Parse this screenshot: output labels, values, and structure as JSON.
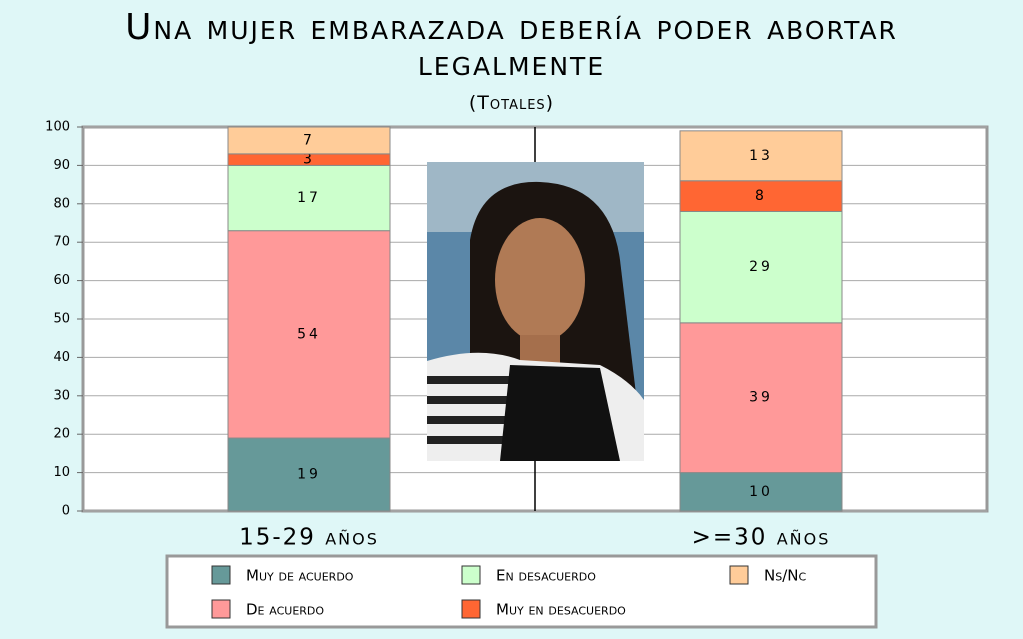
{
  "chart_data": {
    "type": "stacked-bar",
    "title": "Una mujer embarazada debería poder abortar legalmente",
    "subtitle": "(Totales)",
    "categories": [
      "15-29 años",
      ">=30 años"
    ],
    "series": [
      {
        "name": "Muy de acuerdo",
        "color": "#669999",
        "values": [
          19,
          10
        ]
      },
      {
        "name": "De acuerdo",
        "color": "#ff9999",
        "values": [
          54,
          39
        ]
      },
      {
        "name": "En desacuerdo",
        "color": "#ccffcc",
        "values": [
          17,
          29
        ]
      },
      {
        "name": "Muy en desacuerdo",
        "color": "#ff6633",
        "values": [
          3,
          8
        ]
      },
      {
        "name": "Ns/Nc",
        "color": "#ffcc99",
        "values": [
          7,
          13
        ]
      }
    ],
    "ylim": [
      0,
      100
    ],
    "yticks": [
      0,
      10,
      20,
      30,
      40,
      50,
      60,
      70,
      80,
      90,
      100
    ],
    "grid": true,
    "legend": "bottom"
  }
}
